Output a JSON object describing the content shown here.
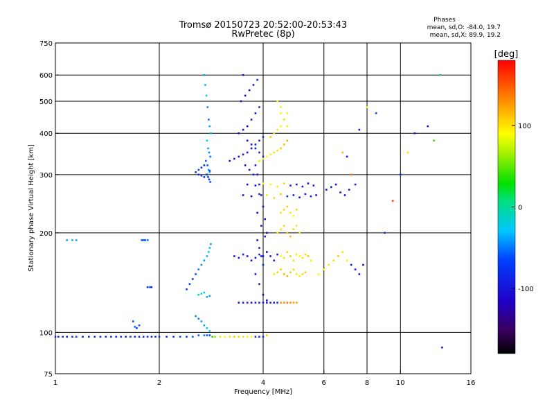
{
  "chart_data": {
    "type": "scatter",
    "title": "Tromsø 20150723 20:52:00-20:53:43",
    "subtitle": "RwPretec (8p)",
    "xlabel": "Frequency [MHz]",
    "ylabel": "Stationary phase Virtual Height [km]",
    "x_scale": "log2",
    "y_scale": "log",
    "xlim": [
      1,
      16
    ],
    "ylim": [
      75,
      750
    ],
    "x_ticks": [
      1,
      2,
      4,
      6,
      8,
      10,
      16
    ],
    "y_ticks": [
      75,
      100,
      200,
      300,
      400,
      500,
      600,
      750
    ],
    "x_gridlines": [
      2,
      4,
      6,
      8,
      10
    ],
    "y_gridlines": [
      100,
      200,
      300,
      400,
      500,
      600
    ],
    "grid": true,
    "phase_info": {
      "heading": "Phases",
      "line_o": "mean, sd,O: -84.0, 19.7",
      "line_x": "mean, sd,X:  89.9, 19.2"
    },
    "colorbar": {
      "label": "[deg]",
      "range": [
        -180,
        180
      ],
      "ticks": [
        100,
        0,
        -100
      ],
      "colormap": "rainbow: black → purple → blue → cyan → green → yellow → orange → red"
    },
    "series": [
      {
        "x": [
          1.0,
          1.02,
          1.05,
          1.08,
          1.12,
          1.15,
          1.2,
          1.25,
          1.3,
          1.35,
          1.4,
          1.45,
          1.5,
          1.55,
          1.6,
          1.65,
          1.7,
          1.75,
          1.8,
          1.85,
          1.9,
          1.95,
          2.0,
          2.1,
          2.2,
          2.3,
          2.4,
          2.5,
          2.6,
          2.7,
          2.75,
          2.8
        ],
        "y": [
          97,
          97,
          97,
          97,
          97,
          97,
          97,
          97,
          97,
          97,
          97,
          97,
          97,
          97,
          97,
          97,
          97,
          97,
          97,
          97,
          97,
          97,
          97,
          97,
          97,
          97,
          97,
          97,
          98,
          98,
          98,
          98
        ],
        "phase": [
          -80,
          -80,
          -75,
          -80,
          -78,
          -80,
          -82,
          -80,
          -78,
          -85,
          -80,
          -80,
          -78,
          -82,
          -80,
          -75,
          -80,
          -80,
          -78,
          -80,
          -80,
          -78,
          -75,
          -80,
          -70,
          -60,
          -65,
          -55,
          -60,
          -50,
          -60,
          -65
        ]
      },
      {
        "x": [
          2.85,
          2.9,
          3.0,
          3.1,
          3.2,
          3.3,
          3.4,
          3.5,
          3.6,
          3.7,
          3.8,
          3.9,
          4.0,
          4.1
        ],
        "y": [
          97,
          97,
          97,
          97,
          97,
          97,
          97,
          97,
          97,
          97,
          97,
          97,
          97,
          98
        ],
        "phase": [
          40,
          60,
          80,
          90,
          100,
          110,
          105,
          100,
          95,
          90,
          -80,
          -85,
          -75,
          110
        ]
      },
      {
        "x": [
          1.08,
          1.12,
          1.15,
          1.78,
          1.8,
          1.82,
          1.85,
          1.75,
          1.7,
          1.68,
          1.72
        ],
        "y": [
          190,
          190,
          190,
          190,
          190,
          190,
          190,
          105,
          104,
          108,
          103
        ],
        "phase": [
          -40,
          -35,
          -40,
          -60,
          -55,
          -60,
          -50,
          -60,
          -55,
          -60,
          -65
        ]
      },
      {
        "x": [
          1.85,
          1.88,
          1.9,
          2.4,
          2.45,
          2.5,
          2.55,
          2.6,
          2.65,
          2.7,
          2.75,
          2.78,
          2.8,
          2.82,
          2.6,
          2.65,
          2.7,
          2.75,
          2.8,
          2.55,
          2.6,
          2.65,
          2.7,
          2.75,
          2.8
        ],
        "y": [
          137,
          137,
          137,
          135,
          140,
          145,
          150,
          155,
          160,
          165,
          170,
          175,
          180,
          185,
          130,
          131,
          132,
          128,
          129,
          112,
          110,
          108,
          105,
          103,
          101
        ],
        "phase": [
          -70,
          -65,
          -75,
          -80,
          -75,
          -70,
          -60,
          -50,
          -45,
          -40,
          -35,
          -30,
          -35,
          -40,
          -20,
          -25,
          -30,
          -35,
          -40,
          -45,
          -50,
          -40,
          -35,
          -30,
          -25
        ]
      },
      {
        "x": [
          2.7,
          2.72,
          2.74,
          2.76,
          2.78,
          2.8,
          2.82,
          2.75,
          2.77,
          2.79,
          2.81,
          2.73,
          2.76,
          2.78,
          2.8,
          2.74,
          2.77,
          2.79,
          2.81,
          2.6,
          2.65,
          2.7,
          2.75,
          2.8,
          2.55,
          2.6,
          2.65,
          2.7
        ],
        "y": [
          600,
          560,
          520,
          480,
          440,
          420,
          400,
          380,
          360,
          350,
          340,
          330,
          320,
          310,
          305,
          300,
          295,
          290,
          285,
          310,
          315,
          320,
          300,
          308,
          305,
          300,
          298,
          295
        ],
        "phase": [
          -40,
          -35,
          -30,
          -45,
          -50,
          -40,
          -35,
          -30,
          -40,
          -45,
          -50,
          -55,
          -60,
          -40,
          -35,
          -70,
          -65,
          -75,
          -60,
          -70,
          -75,
          -80,
          -70,
          -65,
          -80,
          -85,
          -75,
          -70
        ]
      },
      {
        "x": [
          3.2,
          3.3,
          3.4,
          3.5,
          3.6,
          3.7,
          3.8,
          3.9,
          4.0,
          3.4,
          3.5,
          3.6,
          3.7,
          3.8,
          3.9,
          3.45,
          3.55,
          3.65,
          3.75,
          3.85,
          3.5,
          3.6,
          3.7,
          3.8,
          3.9,
          4.0,
          3.55,
          3.65,
          3.75
        ],
        "y": [
          330,
          335,
          340,
          345,
          350,
          360,
          370,
          380,
          390,
          400,
          410,
          420,
          440,
          460,
          480,
          500,
          520,
          540,
          560,
          580,
          600,
          380,
          370,
          360,
          350,
          340,
          320,
          310,
          300
        ],
        "phase": [
          -90,
          -95,
          -100,
          -105,
          -100,
          -95,
          -90,
          -85,
          -80,
          -100,
          -105,
          -110,
          -100,
          -95,
          -90,
          -100,
          -105,
          -110,
          -95,
          -90,
          -100,
          -105,
          -95,
          -90,
          -85,
          -80,
          -100,
          -95,
          -90
        ]
      },
      {
        "x": [
          3.9,
          4.0,
          4.1,
          4.2,
          4.3,
          4.4,
          4.5,
          4.6,
          4.7,
          4.2,
          4.3,
          4.4,
          4.5,
          4.6,
          4.7,
          4.5,
          4.6,
          4.7,
          4.4,
          4.5
        ],
        "y": [
          330,
          335,
          340,
          345,
          350,
          355,
          360,
          370,
          380,
          390,
          400,
          410,
          420,
          440,
          460,
          480,
          440,
          420,
          500,
          460
        ],
        "phase": [
          80,
          85,
          90,
          95,
          100,
          105,
          110,
          115,
          120,
          110,
          105,
          100,
          95,
          90,
          85,
          80,
          75,
          85,
          90,
          95
        ]
      },
      {
        "x": [
          3.5,
          3.7,
          3.9,
          4.1,
          4.3,
          4.5,
          4.7,
          4.9,
          5.1,
          5.3,
          5.5,
          5.7,
          3.6,
          3.8,
          4.0,
          4.2,
          4.4,
          4.6,
          4.8,
          5.0,
          5.2,
          5.4,
          5.6
        ],
        "y": [
          260,
          258,
          262,
          260,
          255,
          262,
          258,
          260,
          256,
          262,
          258,
          260,
          280,
          278,
          282,
          280,
          276,
          282,
          278,
          280,
          276,
          282,
          278
        ],
        "phase": [
          -100,
          -95,
          -90,
          100,
          105,
          110,
          -80,
          -85,
          -100,
          -105,
          -90,
          -95,
          -100,
          -95,
          90,
          95,
          100,
          105,
          -90,
          -95,
          -100,
          -105,
          -90
        ]
      },
      {
        "x": [
          3.8,
          3.85,
          3.9,
          3.95,
          4.0,
          4.05,
          4.1,
          3.85,
          3.9,
          3.95,
          4.0,
          3.8,
          3.9,
          4.0,
          4.1,
          3.85,
          3.95,
          4.05
        ],
        "y": [
          320,
          300,
          280,
          260,
          240,
          220,
          200,
          190,
          180,
          170,
          160,
          150,
          140,
          130,
          125,
          230,
          210,
          195
        ],
        "phase": [
          -100,
          -105,
          -95,
          -90,
          -100,
          -110,
          -105,
          -100,
          -95,
          -90,
          -85,
          -95,
          -100,
          -105,
          -110,
          -100,
          -95,
          -90
        ]
      },
      {
        "x": [
          3.3,
          3.4,
          3.5,
          3.6,
          3.7,
          3.8,
          3.9,
          4.0,
          4.1,
          4.2,
          4.3,
          4.4,
          4.5,
          4.6,
          4.7,
          4.8,
          4.9,
          5.0,
          5.1,
          5.2,
          5.3,
          5.4,
          5.5
        ],
        "y": [
          170,
          168,
          172,
          170,
          165,
          168,
          172,
          170,
          175,
          170,
          165,
          172,
          170,
          168,
          175,
          170,
          165,
          172,
          170,
          168,
          172,
          170,
          165
        ],
        "phase": [
          -100,
          -95,
          -90,
          -105,
          -100,
          -95,
          -90,
          -100,
          -105,
          -95,
          -90,
          -100,
          95,
          100,
          105,
          110,
          100,
          95,
          90,
          100,
          105,
          110,
          95
        ]
      },
      {
        "x": [
          3.4,
          3.5,
          3.6,
          3.7,
          3.8,
          3.9,
          4.0,
          4.1,
          4.2,
          4.3,
          4.4,
          4.5,
          4.6,
          4.7,
          4.8,
          4.9,
          5.0
        ],
        "y": [
          123,
          123,
          123,
          123,
          123,
          123,
          123,
          123,
          123,
          123,
          123,
          123,
          123,
          123,
          123,
          123,
          123
        ],
        "phase": [
          -100,
          -95,
          -90,
          -105,
          -100,
          -95,
          -90,
          -100,
          -105,
          -95,
          -90,
          130,
          135,
          140,
          130,
          125,
          120
        ]
      },
      {
        "x": [
          4.3,
          4.4,
          4.5,
          4.6,
          4.7,
          4.8,
          4.9,
          5.0,
          5.1,
          5.2,
          5.3,
          4.4,
          4.5,
          4.6,
          4.7,
          4.8,
          4.9,
          5.0,
          5.1,
          4.5,
          4.6,
          4.7,
          4.8,
          4.9,
          5.0
        ],
        "y": [
          150,
          152,
          155,
          150,
          148,
          152,
          155,
          150,
          148,
          150,
          152,
          200,
          205,
          210,
          200,
          195,
          205,
          210,
          200,
          230,
          235,
          240,
          230,
          225,
          235
        ],
        "phase": [
          100,
          105,
          110,
          115,
          120,
          110,
          105,
          100,
          95,
          105,
          110,
          95,
          100,
          105,
          110,
          115,
          105,
          100,
          95,
          100,
          105,
          110,
          100,
          95,
          105
        ]
      },
      {
        "x": [
          5.8,
          6.0,
          6.2,
          6.4,
          6.6,
          6.8,
          7.0,
          7.2,
          7.4,
          7.6,
          7.8,
          6.1,
          6.3,
          6.5,
          6.7,
          6.9,
          7.1
        ],
        "y": [
          150,
          155,
          160,
          165,
          170,
          175,
          165,
          160,
          155,
          150,
          160,
          270,
          275,
          280,
          265,
          260,
          270
        ],
        "phase": [
          90,
          95,
          100,
          105,
          110,
          100,
          95,
          -90,
          -95,
          -100,
          -105,
          -90,
          -95,
          -100,
          -105,
          -90,
          -95
        ]
      },
      {
        "x": [
          6.8,
          7.0,
          7.2,
          7.4,
          7.6,
          8.0,
          8.5,
          9.0,
          9.5,
          10.0,
          10.5,
          11.0,
          12.0,
          12.5,
          13.0,
          13.2
        ],
        "y": [
          350,
          340,
          300,
          280,
          410,
          480,
          460,
          200,
          250,
          300,
          350,
          400,
          420,
          380,
          600,
          90
        ],
        "phase": [
          120,
          -100,
          140,
          -100,
          -95,
          90,
          -60,
          -80,
          160,
          -90,
          100,
          -100,
          -100,
          40,
          10,
          -100
        ]
      }
    ]
  }
}
